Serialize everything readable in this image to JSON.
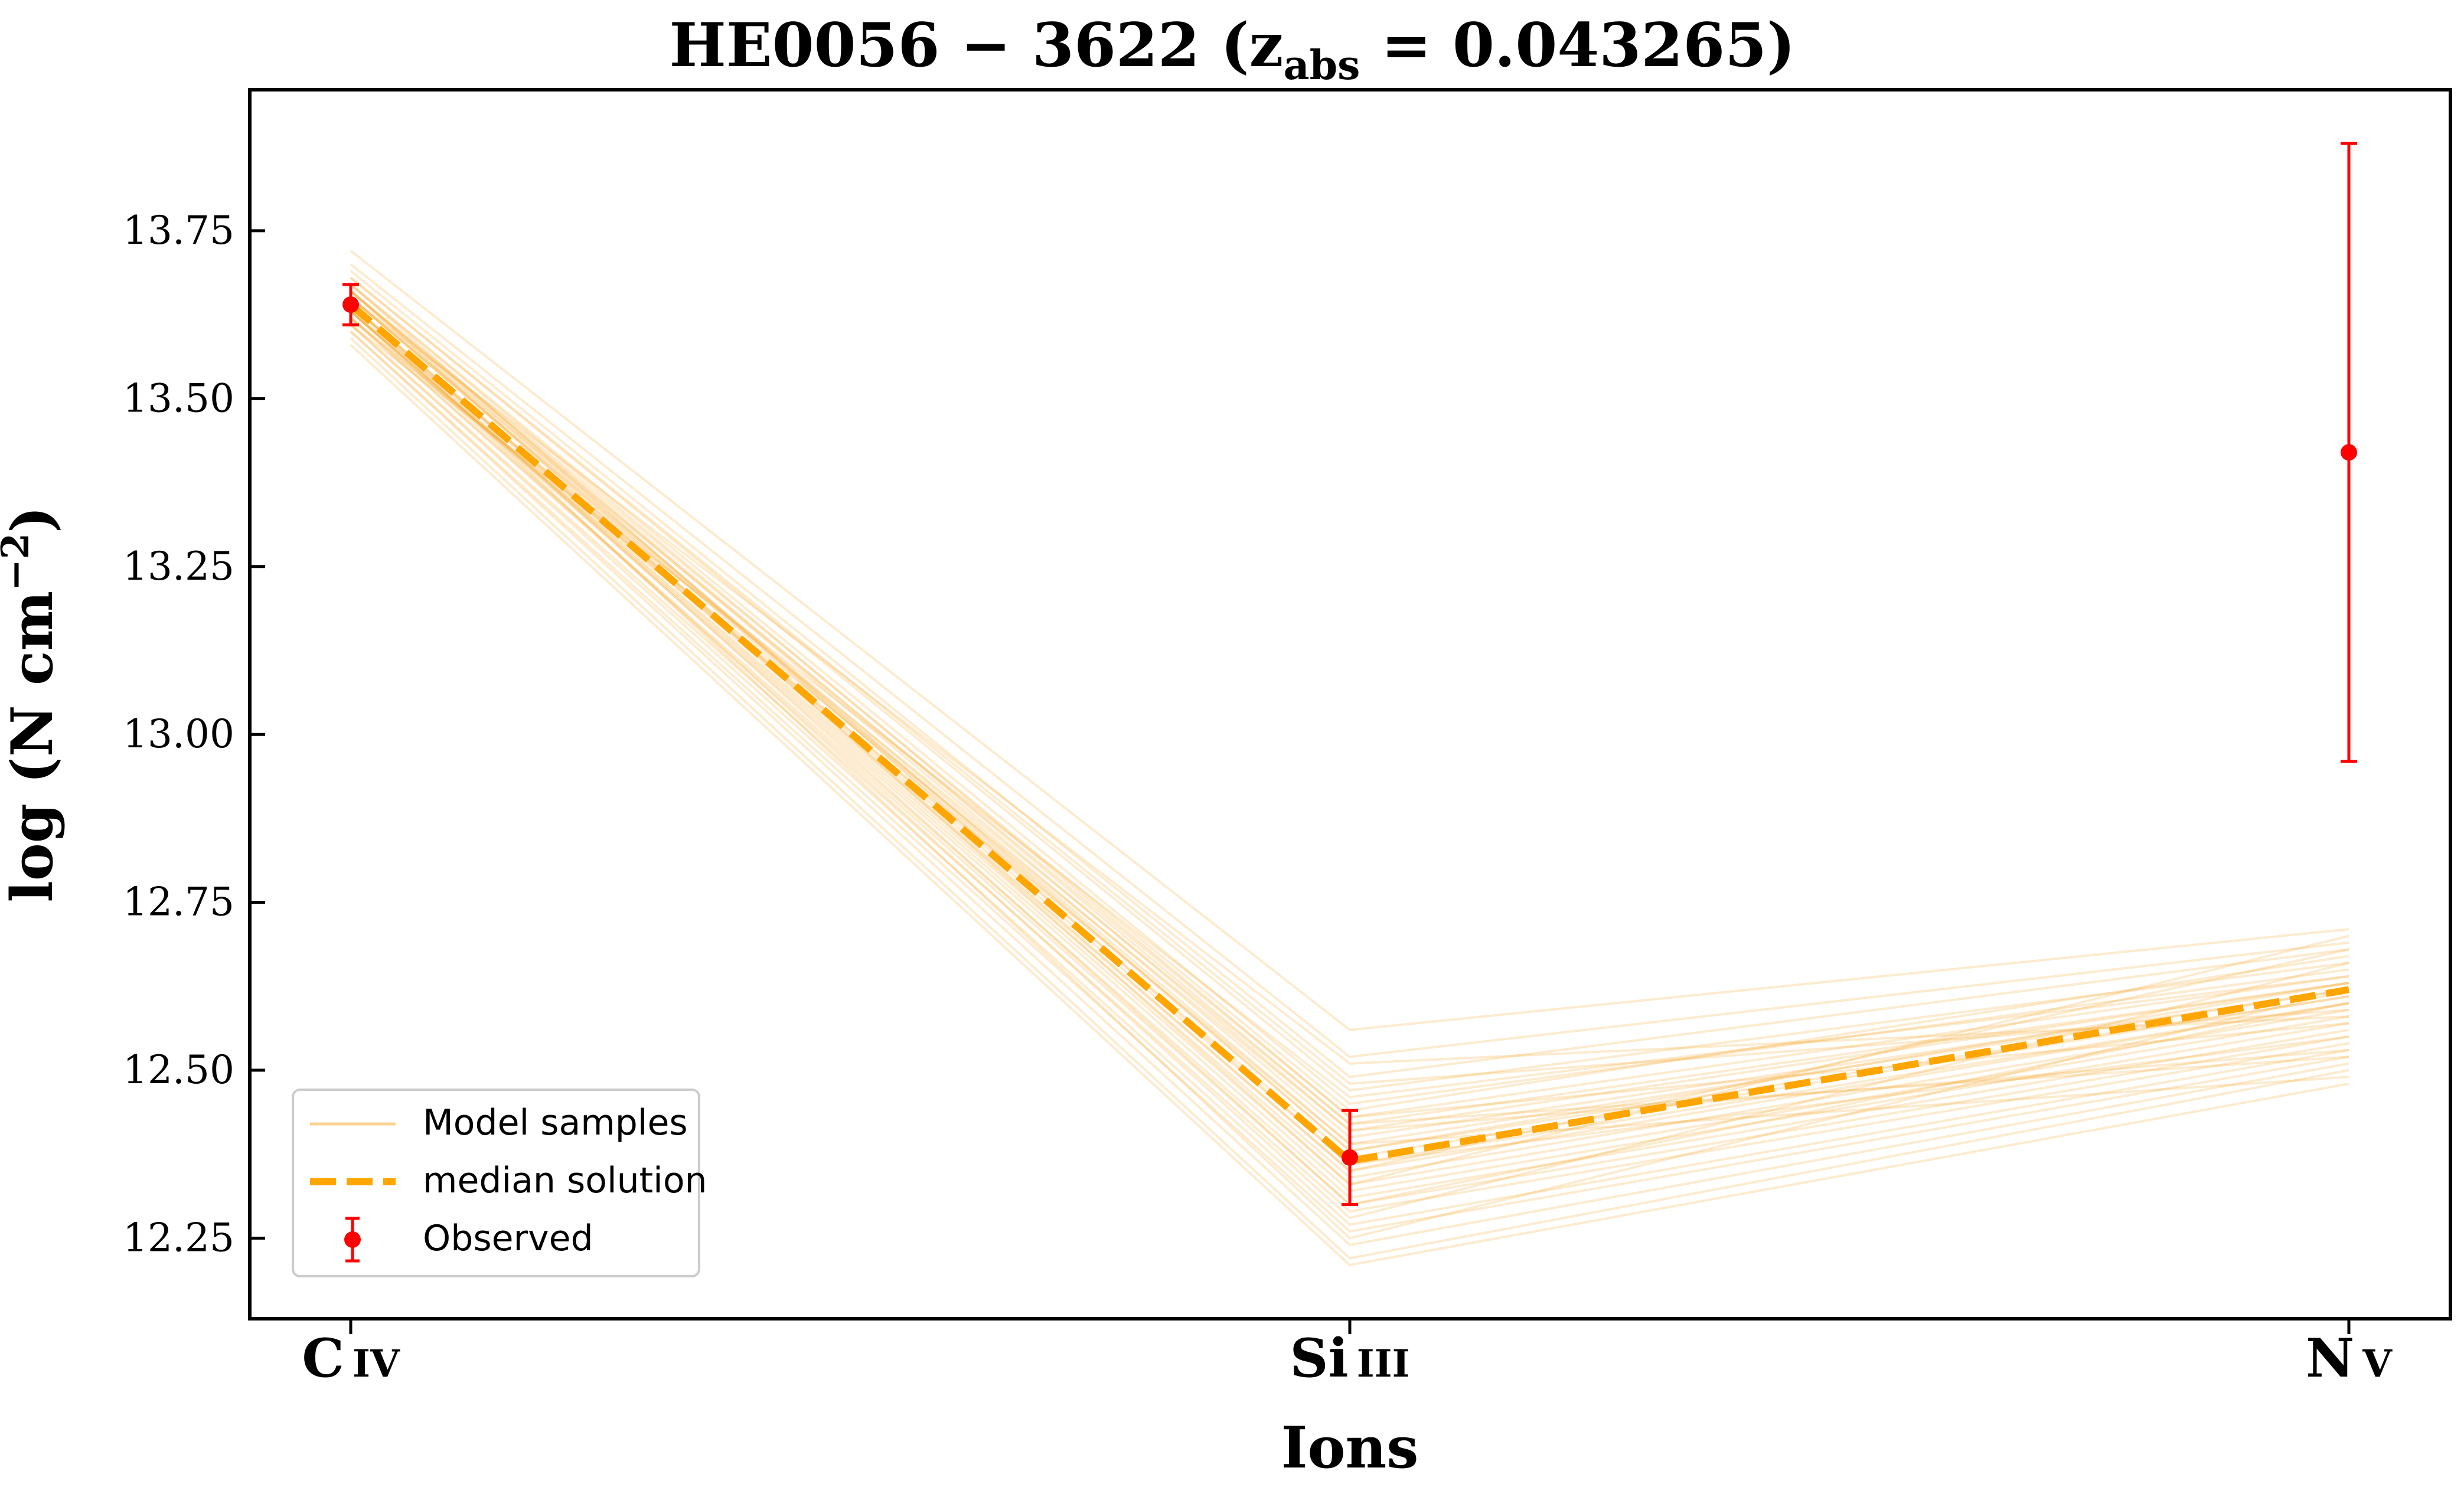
{
  "chart_data": {
    "type": "line",
    "title": {
      "main": "HE0056 − 3622 (z",
      "sub": "abs",
      "rest": " = 0.043265)"
    },
    "xlabel": "Ions",
    "ylabel": {
      "main": "log (N cm",
      "sup": "−2",
      "end": ")"
    },
    "categories": [
      {
        "main": "C",
        "small": "IV"
      },
      {
        "main": "Si",
        "small": "III"
      },
      {
        "main": "N",
        "small": "V"
      }
    ],
    "ylim": [
      12.13,
      13.96
    ],
    "yticks": [
      12.25,
      12.5,
      12.75,
      13.0,
      13.25,
      13.5,
      13.75
    ],
    "ytick_labels": [
      "12.25",
      "12.50",
      "12.75",
      "13.00",
      "13.25",
      "13.50",
      "13.75"
    ],
    "grid": false,
    "legend_position": "lower-left",
    "legend": {
      "samples": "Model samples",
      "median": "median solution",
      "observed": "Observed"
    },
    "colors": {
      "samples": "#f5a623",
      "median": "#ffa500",
      "observed": "#ff0000"
    },
    "observed": [
      {
        "value": 13.64,
        "err_low": 0.03,
        "err_high": 0.03
      },
      {
        "value": 12.37,
        "err_low": 0.07,
        "err_high": 0.07
      },
      {
        "value": 13.42,
        "err_low": 0.46,
        "err_high": 0.46
      }
    ],
    "median": [
      13.64,
      12.365,
      12.62
    ],
    "samples": [
      [
        13.72,
        12.56,
        12.71
      ],
      [
        13.7,
        12.52,
        12.69
      ],
      [
        13.69,
        12.49,
        12.68
      ],
      [
        13.68,
        12.47,
        12.66
      ],
      [
        13.67,
        12.45,
        12.65
      ],
      [
        13.67,
        12.43,
        12.64
      ],
      [
        13.66,
        12.42,
        12.63
      ],
      [
        13.66,
        12.41,
        12.63
      ],
      [
        13.65,
        12.4,
        12.62
      ],
      [
        13.65,
        12.39,
        12.62
      ],
      [
        13.65,
        12.38,
        12.61
      ],
      [
        13.64,
        12.37,
        12.61
      ],
      [
        13.64,
        12.36,
        12.6
      ],
      [
        13.64,
        12.35,
        12.6
      ],
      [
        13.63,
        12.34,
        12.59
      ],
      [
        13.63,
        12.33,
        12.58
      ],
      [
        13.63,
        12.32,
        12.57
      ],
      [
        13.62,
        12.31,
        12.56
      ],
      [
        13.62,
        12.3,
        12.55
      ],
      [
        13.61,
        12.29,
        12.54
      ],
      [
        13.61,
        12.27,
        12.53
      ],
      [
        13.6,
        12.26,
        12.52
      ],
      [
        13.6,
        12.24,
        12.51
      ],
      [
        13.59,
        12.22,
        12.5
      ],
      [
        13.58,
        12.21,
        12.48
      ],
      [
        13.68,
        12.48,
        12.59
      ],
      [
        13.66,
        12.44,
        12.67
      ],
      [
        13.62,
        12.41,
        12.53
      ],
      [
        13.65,
        12.51,
        12.58
      ],
      [
        13.63,
        12.28,
        12.66
      ],
      [
        13.67,
        12.36,
        12.55
      ],
      [
        13.61,
        12.46,
        12.64
      ],
      [
        13.64,
        12.25,
        12.62
      ],
      [
        13.66,
        12.33,
        12.7
      ],
      [
        13.62,
        12.39,
        12.49
      ],
      [
        13.65,
        12.43,
        12.57
      ],
      [
        13.63,
        12.35,
        12.68
      ],
      [
        13.64,
        12.3,
        12.6
      ],
      [
        13.66,
        12.38,
        12.63
      ],
      [
        13.63,
        12.42,
        12.52
      ]
    ]
  }
}
